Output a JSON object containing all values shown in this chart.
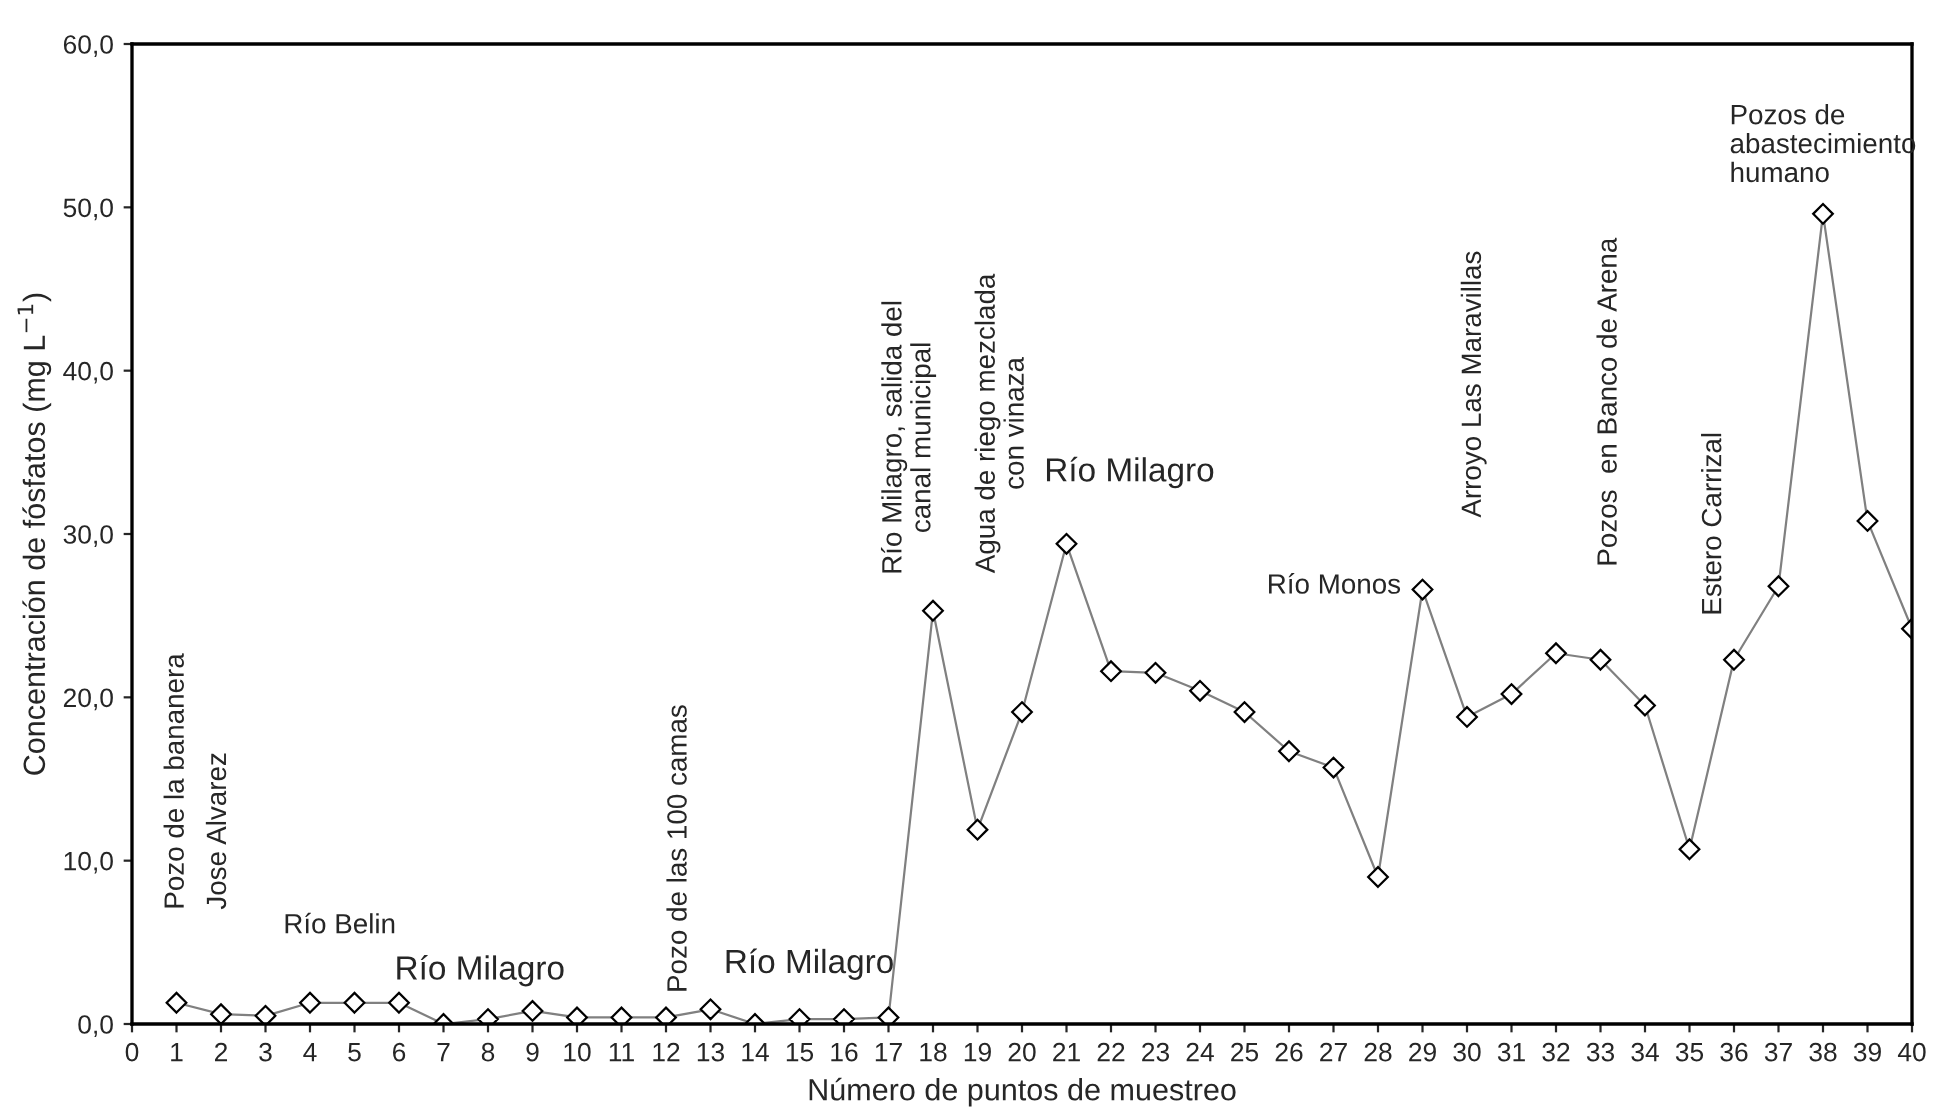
{
  "chart_data": {
    "type": "line",
    "xlabel": "Número de puntos de muestreo",
    "ylabel": "Concentración de fósfatos (mg L$^{−1}$)",
    "x": [
      1,
      2,
      3,
      4,
      5,
      6,
      7,
      8,
      9,
      10,
      11,
      12,
      13,
      14,
      15,
      16,
      17,
      18,
      19,
      20,
      21,
      22,
      23,
      24,
      25,
      26,
      27,
      28,
      29,
      30,
      31,
      32,
      33,
      34,
      35,
      36,
      37,
      38,
      39,
      40
    ],
    "series": [
      {
        "color": "#808080",
        "values": [
          1.3,
          0.6,
          0.5,
          1.3,
          1.3,
          1.3,
          0.0,
          0.3,
          0.8,
          0.4,
          0.4,
          0.4,
          0.9,
          0.0,
          0.3,
          0.3,
          0.4,
          25.3,
          11.9,
          19.1,
          29.4,
          21.6,
          21.5,
          20.4,
          19.1,
          16.7,
          15.7,
          9.0,
          26.6,
          18.8,
          20.2,
          22.7,
          22.3,
          19.5,
          10.7,
          22.3,
          26.8,
          49.6,
          30.8,
          24.2
        ]
      }
    ],
    "marker": "diamond",
    "line_style": "solid",
    "xlim": [
      0,
      40
    ],
    "xticks": [
      0,
      1,
      2,
      3,
      4,
      5,
      6,
      7,
      8,
      9,
      10,
      11,
      12,
      13,
      14,
      15,
      16,
      17,
      18,
      19,
      20,
      21,
      22,
      23,
      24,
      25,
      26,
      27,
      28,
      29,
      30,
      31,
      32,
      33,
      34,
      35,
      36,
      37,
      38,
      39,
      40
    ],
    "ylim": [
      0,
      60
    ],
    "yticks": [
      {
        "value": 0,
        "label": "0,0"
      },
      {
        "value": 10,
        "label": "10,0"
      },
      {
        "value": 20,
        "label": "20,0"
      },
      {
        "value": 30,
        "label": "30,0"
      },
      {
        "value": 40,
        "label": "40,0"
      },
      {
        "value": 50,
        "label": "50,0"
      },
      {
        "value": 60,
        "label": "60,0"
      }
    ],
    "grid": false,
    "legend": false,
    "annotations": [
      "Pozo de la bananera",
      "Jose Alvarez",
      "Río Belin",
      "Río Milagro",
      "Pozo de las 100 camas",
      "Río Milagro",
      "Río Milagro, salida del\ncanal municipal",
      "Agua de riego mezclada\ncon vinaza",
      "Río Milagro",
      "Río Monos",
      "Arroyo Las Maravillas",
      "Pozos  en Banco de Arena",
      "Estero Carrizal",
      "Pozos de\nabastecimiento\nhumano"
    ]
  }
}
